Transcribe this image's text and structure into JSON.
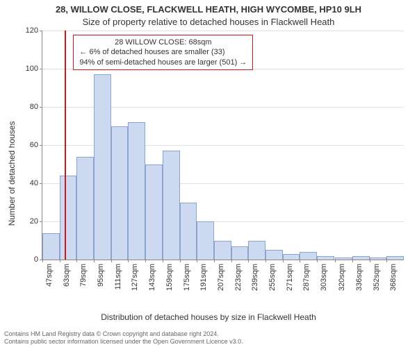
{
  "chart": {
    "type": "histogram",
    "title_main": "28, WILLOW CLOSE, FLACKWELL HEATH, HIGH WYCOMBE, HP10 9LH",
    "title_sub": "Size of property relative to detached houses in Flackwell Heath",
    "ylabel": "Number of detached houses",
    "xlabel": "Distribution of detached houses by size in Flackwell Heath",
    "title_fontsize": 13,
    "label_fontsize": 12,
    "tick_fontsize": 11,
    "background_color": "#ffffff",
    "grid_color": "#e0e0e0",
    "axis_color": "#888888",
    "bar_fill": "#ccd9f0",
    "bar_stroke": "#8aa3cf",
    "bar_width": 1.0,
    "bin_width": 16,
    "ylim": [
      0,
      120
    ],
    "ytick_step": 20,
    "yticks": [
      0,
      20,
      40,
      60,
      80,
      100,
      120
    ],
    "xlim": [
      47,
      384
    ],
    "xticks": [
      47,
      63,
      79,
      95,
      111,
      127,
      143,
      159,
      175,
      191,
      207,
      223,
      239,
      255,
      271,
      287,
      303,
      320,
      336,
      352,
      368
    ],
    "xtick_unit": "sqm",
    "bins": [
      {
        "x": 47,
        "count": 14
      },
      {
        "x": 63,
        "count": 44
      },
      {
        "x": 79,
        "count": 54
      },
      {
        "x": 95,
        "count": 97
      },
      {
        "x": 111,
        "count": 70
      },
      {
        "x": 127,
        "count": 72
      },
      {
        "x": 143,
        "count": 50
      },
      {
        "x": 159,
        "count": 57
      },
      {
        "x": 175,
        "count": 30
      },
      {
        "x": 191,
        "count": 20
      },
      {
        "x": 207,
        "count": 10
      },
      {
        "x": 223,
        "count": 7
      },
      {
        "x": 239,
        "count": 10
      },
      {
        "x": 255,
        "count": 5
      },
      {
        "x": 271,
        "count": 3
      },
      {
        "x": 287,
        "count": 4
      },
      {
        "x": 303,
        "count": 2
      },
      {
        "x": 320,
        "count": 1
      },
      {
        "x": 336,
        "count": 2
      },
      {
        "x": 352,
        "count": 1
      },
      {
        "x": 368,
        "count": 2
      }
    ],
    "indicator": {
      "x": 68,
      "color": "#c81818"
    },
    "annotation": {
      "border_color": "#c81818",
      "bg_color": "#ffffff",
      "lines": [
        "28 WILLOW CLOSE: 68sqm",
        "← 6% of detached houses are smaller (33)",
        "94% of semi-detached houses are larger (501) →"
      ]
    }
  },
  "footer": {
    "line1": "Contains HM Land Registry data © Crown copyright and database right 2024.",
    "line2": "Contains public sector information licensed under the Open Government Licence v3.0.",
    "color": "#666666",
    "fontsize": 9
  }
}
